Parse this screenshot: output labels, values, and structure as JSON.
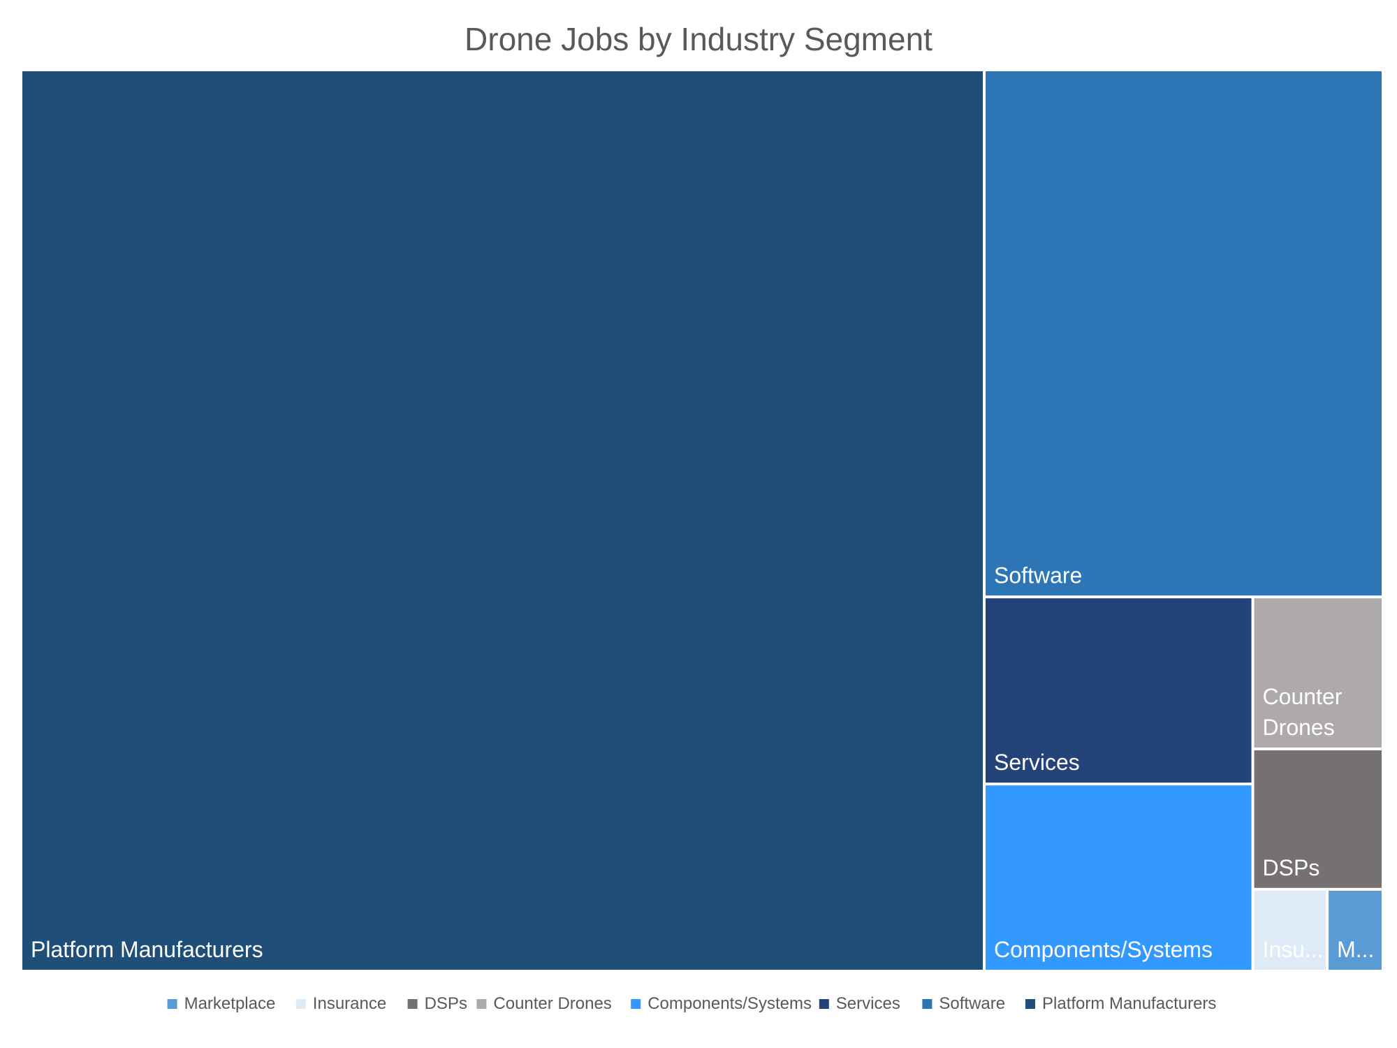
{
  "chart_data": {
    "type": "treemap",
    "title": "Drone Jobs by Industry Segment",
    "legend_position": "bottom",
    "categories": [
      "Platform Manufacturers",
      "Software",
      "Services",
      "Components/Systems",
      "Counter Drones",
      "DSPs",
      "Insurance",
      "Marketplace"
    ],
    "values": [
      570,
      138,
      33,
      33,
      13,
      12,
      4,
      3
    ],
    "tile_labels": [
      "Platform Manufacturers",
      "Software",
      "Services",
      "Components/Systems",
      "Counter Drones",
      "DSPs",
      "Insu...",
      "M..."
    ],
    "colors": [
      "#1f4e79",
      "#2e75b6",
      "#244379",
      "#3399ff",
      "#aeaaaa",
      "#767171",
      "#deebf7",
      "#5b9bd5"
    ],
    "label_colors": [
      "#ffffff",
      "#ffffff",
      "#ffffff",
      "#ffffff",
      "#ffffff",
      "#ffffff",
      "#ffffff",
      "#ffffff"
    ],
    "legend": [
      "Marketplace",
      "Insurance",
      "DSPs",
      "Counter Drones",
      "Components/Systems",
      "Services",
      "Software",
      "Platform Manufacturers"
    ]
  }
}
